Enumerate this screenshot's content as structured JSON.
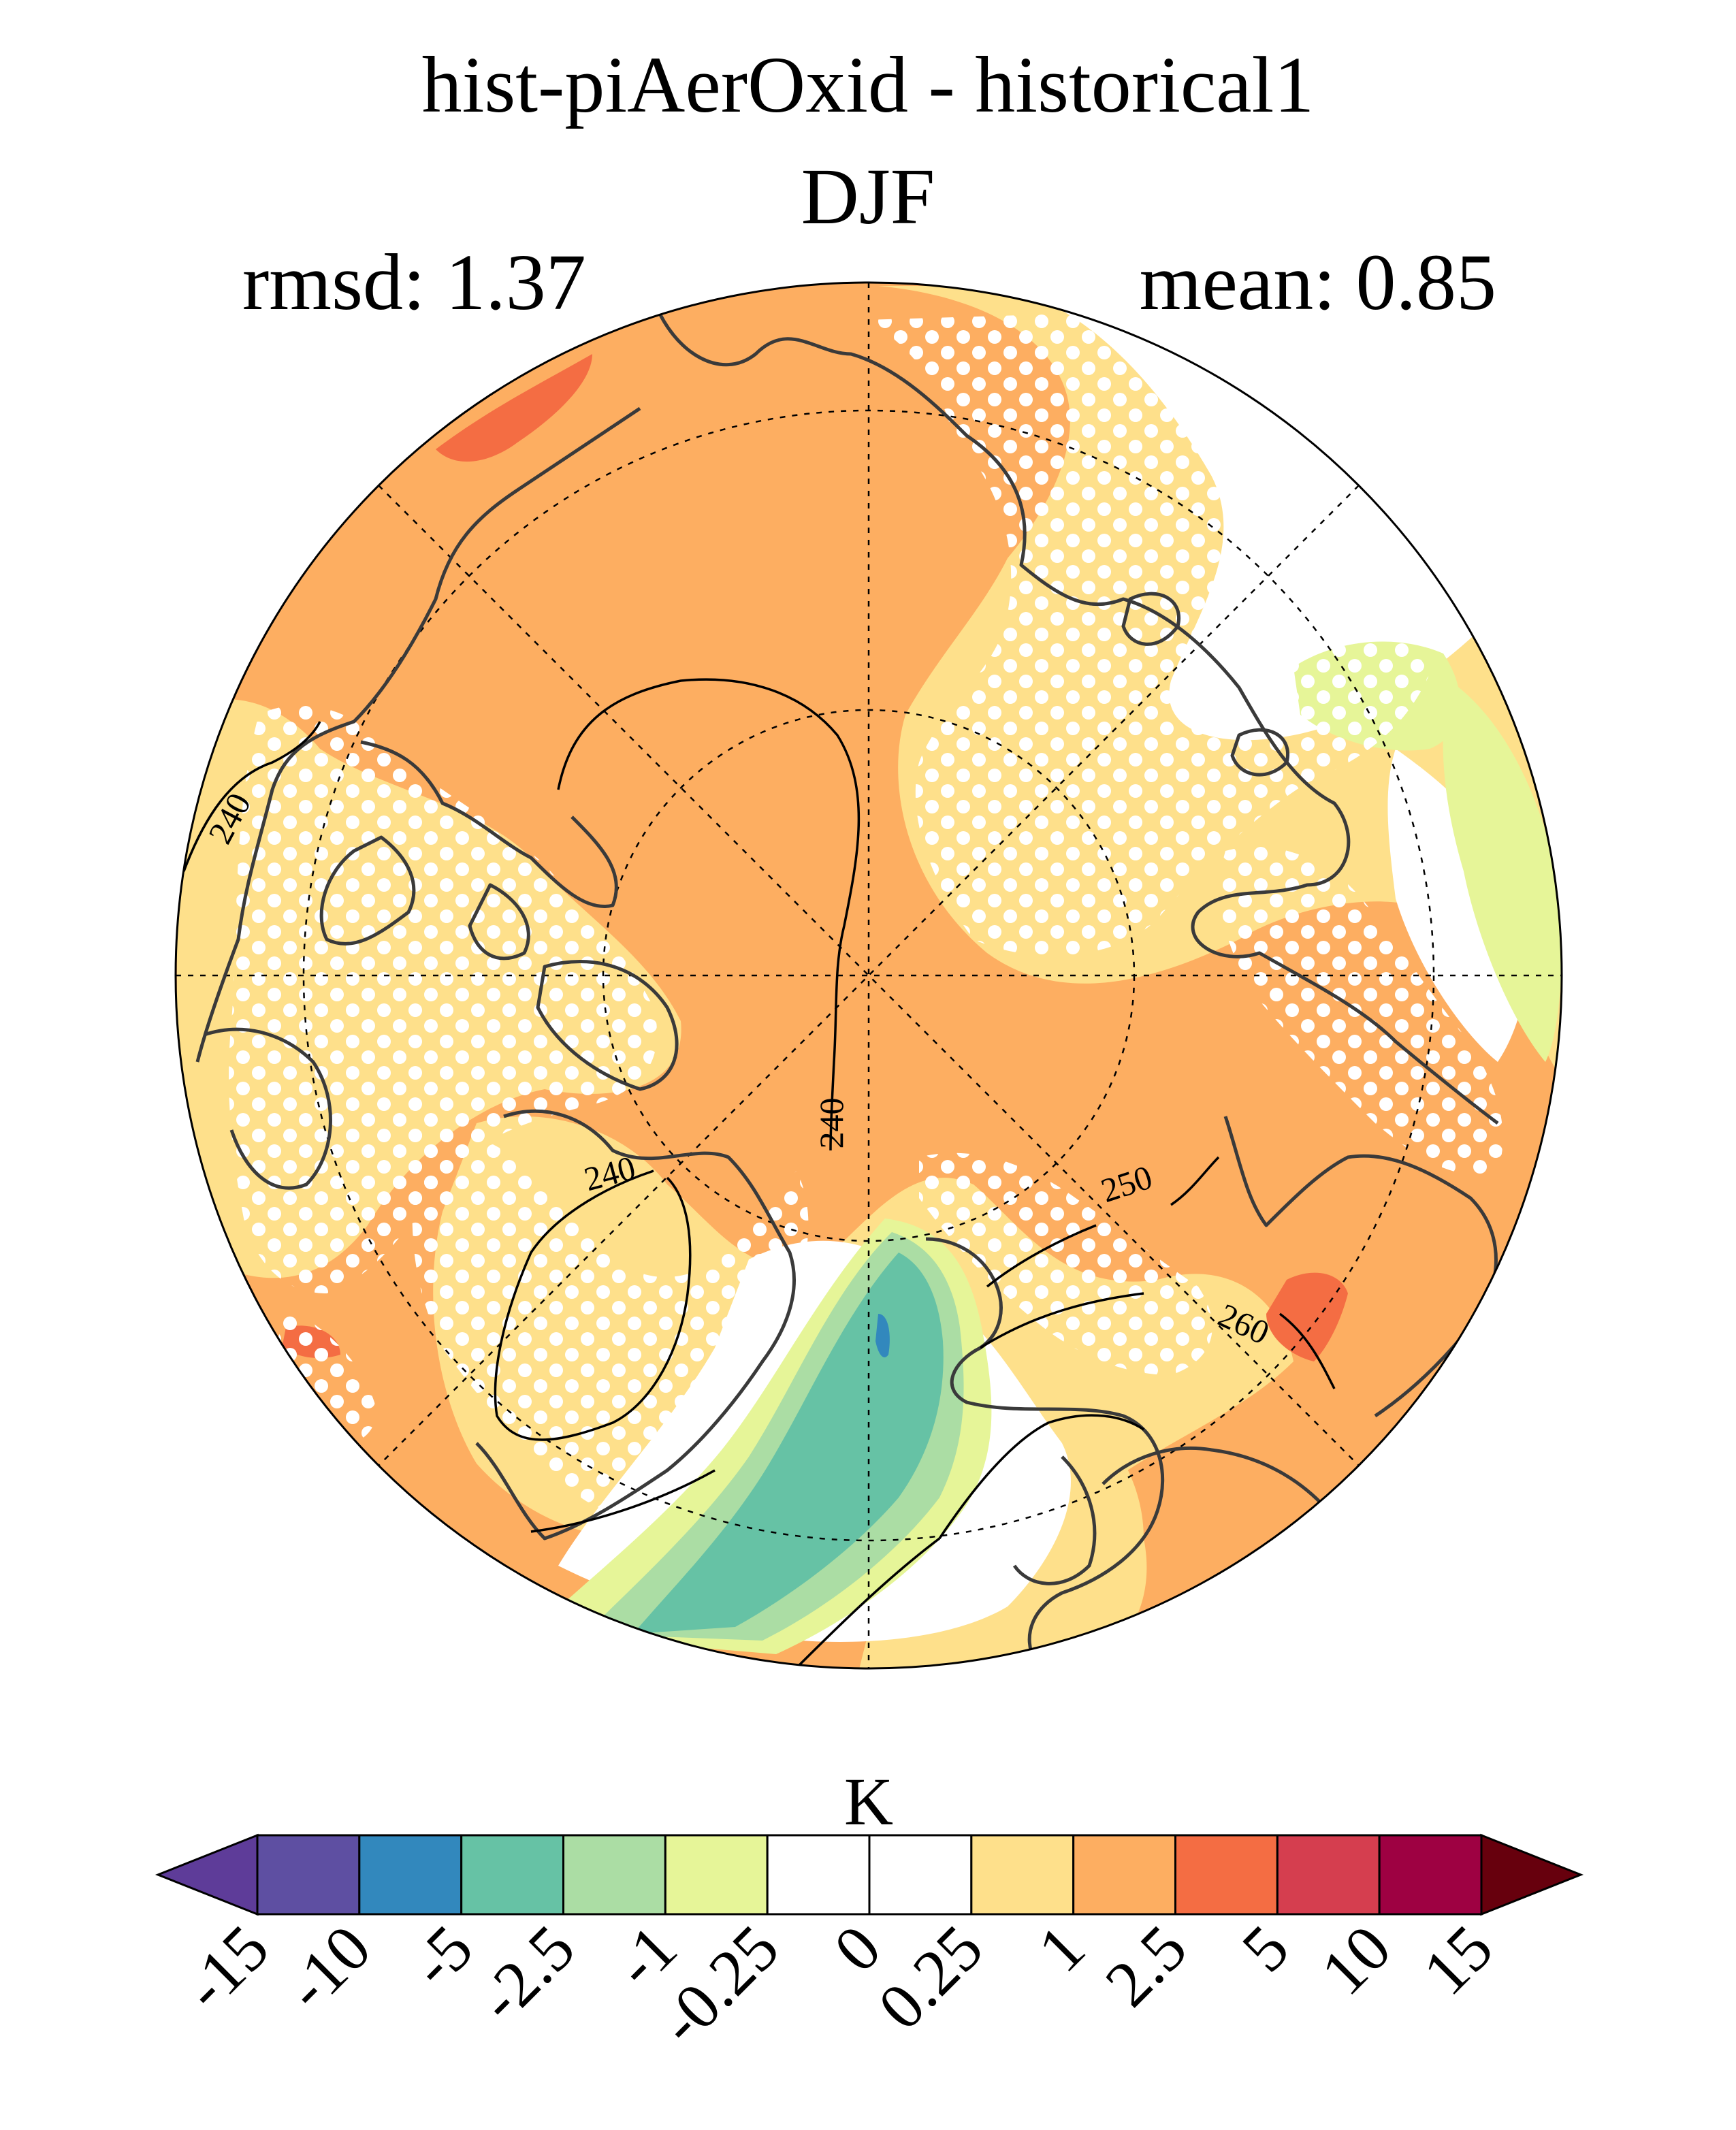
{
  "title": "hist-piAerOxid - historical1",
  "season": "DJF",
  "stats": {
    "rmsd_label": "rmsd: 1.37",
    "mean_label": "mean: 0.85"
  },
  "contour_labels": [
    {
      "text": "240",
      "id": "contour-label-240-west"
    },
    {
      "text": "240",
      "id": "contour-label-240-centre"
    },
    {
      "text": "240",
      "id": "contour-label-240-south"
    },
    {
      "text": "250",
      "id": "contour-label-250"
    },
    {
      "text": "260",
      "id": "contour-label-260"
    }
  ],
  "colorbar": {
    "unit": "K",
    "ticks": [
      "-15",
      "-10",
      "-5",
      "-2.5",
      "-1",
      "-0.25",
      "0",
      "0.25",
      "1",
      "2.5",
      "5",
      "10",
      "15"
    ],
    "colors": [
      "#5e3c99",
      "#5e4fa2",
      "#3288bd",
      "#66c2a5",
      "#abdda4",
      "#e6f598",
      "#ffffff",
      "#ffffff",
      "#fee08b",
      "#fdae61",
      "#f46d43",
      "#d53e4f",
      "#9e0142",
      "#67000d"
    ]
  }
}
